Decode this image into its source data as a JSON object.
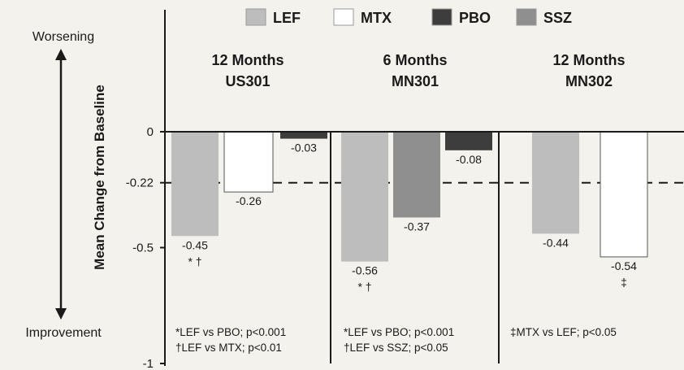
{
  "chart_data": {
    "type": "bar",
    "legend_position": "top",
    "legend": [
      {
        "name": "LEF",
        "color": "#bdbdbd",
        "key": "lef"
      },
      {
        "name": "MTX",
        "color": "#ffffff",
        "key": "mtx"
      },
      {
        "name": "PBO",
        "color": "#3d3d3d",
        "key": "pbo"
      },
      {
        "name": "SSZ",
        "color": "#8f8f8f",
        "key": "ssz"
      }
    ],
    "ylabel": "Mean Change from Baseline",
    "y_top_label": "Worsening",
    "y_bottom_label": "Improvement",
    "ylim": [
      -1,
      0.1
    ],
    "yticks": [
      {
        "value": 0,
        "label": "0"
      },
      {
        "value": -0.22,
        "label": "-0.22"
      },
      {
        "value": -0.5,
        "label": "-0.5"
      },
      {
        "value": -1,
        "label": "-1"
      }
    ],
    "reference_line": {
      "value": -0.22,
      "style": "dashed"
    },
    "grid": false,
    "groups": [
      {
        "title_line1": "12 Months",
        "title_line2": "US301",
        "bars": [
          {
            "series": "LEF",
            "value": -0.45,
            "label": "-0.45",
            "marker": "* †"
          },
          {
            "series": "MTX",
            "value": -0.26,
            "label": "-0.26",
            "marker": ""
          },
          {
            "series": "PBO",
            "value": -0.03,
            "label": "-0.03",
            "marker": ""
          }
        ],
        "footnotes": [
          "*LEF vs PBO; p<0.001",
          "†LEF vs MTX; p<0.01"
        ]
      },
      {
        "title_line1": "6 Months",
        "title_line2": "MN301",
        "bars": [
          {
            "series": "LEF",
            "value": -0.56,
            "label": "-0.56",
            "marker": "* †"
          },
          {
            "series": "SSZ",
            "value": -0.37,
            "label": "-0.37",
            "marker": ""
          },
          {
            "series": "PBO",
            "value": -0.08,
            "label": "-0.08",
            "marker": ""
          }
        ],
        "footnotes": [
          "*LEF vs PBO; p<0.001",
          "†LEF vs SSZ; p<0.05"
        ]
      },
      {
        "title_line1": "12 Months",
        "title_line2": "MN302",
        "bars": [
          {
            "series": "LEF",
            "value": -0.44,
            "label": "-0.44",
            "marker": ""
          },
          {
            "series": "MTX",
            "value": -0.54,
            "label": "-0.54",
            "marker": "‡"
          }
        ],
        "footnotes": [
          "‡MTX vs LEF; p<0.05"
        ]
      }
    ]
  }
}
